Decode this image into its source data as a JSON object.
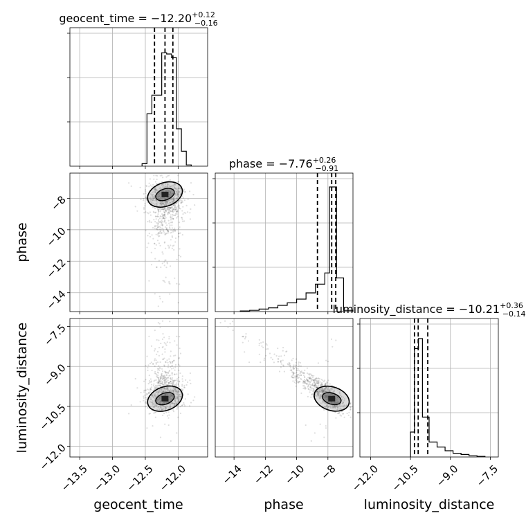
{
  "colors": {
    "ink": "#000000",
    "grid": "#b0b0b0",
    "frame": "#000000",
    "sample": "#000000"
  },
  "chart_data": [
    {
      "type": "histogram",
      "parameter": "geocent_time",
      "title": {
        "prefix": "geocent_time = ",
        "value": "−12.20",
        "plus": "+0.12",
        "minus": "−0.16"
      },
      "xlim": [
        -13.65,
        -11.55
      ],
      "grid": true,
      "bins": [
        {
          "x0": -12.55,
          "x1": -12.475,
          "density": 0.02
        },
        {
          "x0": -12.475,
          "x1": -12.4,
          "density": 0.42
        },
        {
          "x0": -12.4,
          "x1": -12.325,
          "density": 0.57
        },
        {
          "x0": -12.325,
          "x1": -12.25,
          "density": 0.57
        },
        {
          "x0": -12.25,
          "x1": -12.175,
          "density": 0.91
        },
        {
          "x0": -12.175,
          "x1": -12.1,
          "density": 0.9
        },
        {
          "x0": -12.1,
          "x1": -12.025,
          "density": 0.87
        },
        {
          "x0": -12.025,
          "x1": -11.95,
          "density": 0.3
        },
        {
          "x0": -11.95,
          "x1": -11.875,
          "density": 0.12
        },
        {
          "x0": -11.875,
          "x1": -11.8,
          "density": 0.01
        }
      ],
      "quantile_lines": [
        -12.36,
        -12.2,
        -12.08
      ]
    },
    {
      "type": "histogram",
      "parameter": "phase",
      "title": {
        "prefix": "phase = ",
        "value": "−7.76",
        "plus": "+0.26",
        "minus": "−0.91"
      },
      "xlim": [
        -15.2,
        -6.4
      ],
      "grid": true,
      "bins": [
        {
          "x0": -13.6,
          "x1": -13.0,
          "density": 0.005
        },
        {
          "x0": -13.0,
          "x1": -12.4,
          "density": 0.01
        },
        {
          "x0": -12.4,
          "x1": -11.8,
          "density": 0.02
        },
        {
          "x0": -11.8,
          "x1": -11.2,
          "density": 0.03
        },
        {
          "x0": -11.2,
          "x1": -10.6,
          "density": 0.05
        },
        {
          "x0": -10.6,
          "x1": -10.0,
          "density": 0.07
        },
        {
          "x0": -10.0,
          "x1": -9.4,
          "density": 0.1
        },
        {
          "x0": -9.4,
          "x1": -8.8,
          "density": 0.15
        },
        {
          "x0": -8.8,
          "x1": -8.2,
          "density": 0.22
        },
        {
          "x0": -8.2,
          "x1": -7.9,
          "density": 0.31
        },
        {
          "x0": -7.9,
          "x1": -7.45,
          "density": 1.0
        },
        {
          "x0": -7.45,
          "x1": -7.0,
          "density": 0.27
        },
        {
          "x0": -7.0,
          "x1": -6.4,
          "density": 0.01
        }
      ],
      "quantile_lines": [
        -8.67,
        -7.76,
        -7.5
      ]
    },
    {
      "type": "histogram",
      "parameter": "luminosity_distance",
      "title": {
        "prefix": "luminosity_distance = ",
        "value": "−10.21",
        "plus": "+0.36",
        "minus": "−0.14"
      },
      "xlim": [
        -12.4,
        -7.2
      ],
      "grid": true,
      "bins": [
        {
          "x0": -10.5,
          "x1": -10.35,
          "density": 0.2
        },
        {
          "x0": -10.35,
          "x1": -10.2,
          "density": 0.87
        },
        {
          "x0": -10.2,
          "x1": -10.05,
          "density": 0.95
        },
        {
          "x0": -10.05,
          "x1": -9.8,
          "density": 0.32
        },
        {
          "x0": -9.8,
          "x1": -9.5,
          "density": 0.12
        },
        {
          "x0": -9.5,
          "x1": -9.2,
          "density": 0.08
        },
        {
          "x0": -9.2,
          "x1": -8.9,
          "density": 0.05
        },
        {
          "x0": -8.9,
          "x1": -8.6,
          "density": 0.03
        },
        {
          "x0": -8.6,
          "x1": -8.3,
          "density": 0.02
        },
        {
          "x0": -8.3,
          "x1": -8.0,
          "density": 0.01
        },
        {
          "x0": -8.0,
          "x1": -7.7,
          "density": 0.005
        }
      ],
      "quantile_lines": [
        -10.35,
        -10.21,
        -9.85
      ]
    },
    {
      "type": "scatter",
      "subtype": "2d-density-contour",
      "x_parameter": "geocent_time",
      "y_parameter": "phase",
      "xlim": [
        -13.65,
        -11.55
      ],
      "ylim": [
        -15.2,
        -6.4
      ],
      "grid": true,
      "peak": [
        -12.2,
        -7.76
      ],
      "points_description": "dense cloud between geocent_time -12.5 and -11.8, phase -11 to -6.6, plus sparse tail to phase -15"
    },
    {
      "type": "scatter",
      "subtype": "2d-density-contour",
      "x_parameter": "geocent_time",
      "y_parameter": "luminosity_distance",
      "xlim": [
        -13.65,
        -11.55
      ],
      "ylim": [
        -12.4,
        -7.2
      ],
      "grid": true,
      "peak": [
        -12.2,
        -10.21
      ]
    },
    {
      "type": "scatter",
      "subtype": "2d-density-contour",
      "x_parameter": "phase",
      "y_parameter": "luminosity_distance",
      "xlim": [
        -15.2,
        -6.4
      ],
      "ylim": [
        -12.4,
        -7.2
      ],
      "grid": true,
      "peak": [
        -7.76,
        -10.21
      ]
    }
  ],
  "axes": {
    "geocent_time": {
      "label": "geocent_time",
      "ticks": [
        {
          "value": -13.5,
          "label": "−13.5"
        },
        {
          "value": -13.0,
          "label": "−13.0"
        },
        {
          "value": -12.5,
          "label": "−12.5"
        },
        {
          "value": -12.0,
          "label": "−12.0"
        }
      ]
    },
    "phase": {
      "label": "phase",
      "ticks": [
        {
          "value": -14,
          "label": "−14"
        },
        {
          "value": -12,
          "label": "−12"
        },
        {
          "value": -10,
          "label": "−10"
        },
        {
          "value": -8,
          "label": "−8"
        }
      ]
    },
    "luminosity_distance": {
      "label": "luminosity_distance",
      "ticks": [
        {
          "value": -12.0,
          "label": "−12.0"
        },
        {
          "value": -10.5,
          "label": "−10.5"
        },
        {
          "value": -9.0,
          "label": "−9.0"
        },
        {
          "value": -7.5,
          "label": "−7.5"
        }
      ]
    }
  }
}
